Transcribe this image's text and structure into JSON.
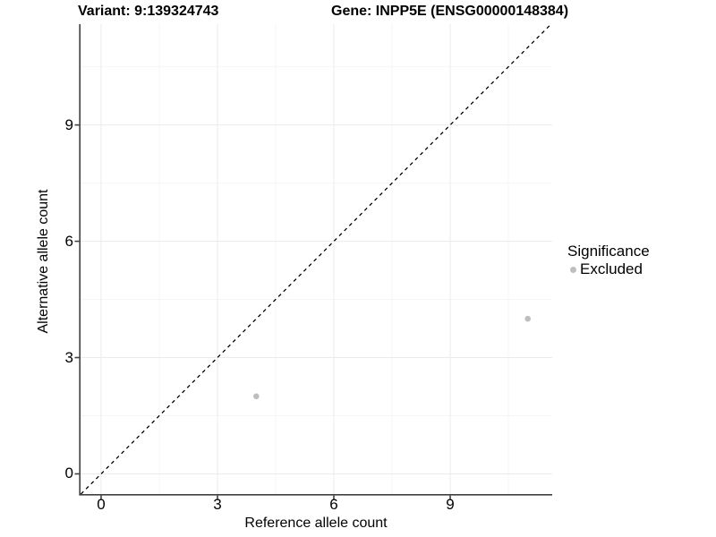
{
  "chart_data": {
    "type": "scatter",
    "titles": {
      "left": "Variant: 9:139324743",
      "right": "Gene: INPP5E (ENSG00000148384)"
    },
    "xlabel": "Reference allele count",
    "ylabel": "Alternative allele count",
    "xlim": [
      -0.53,
      11.63
    ],
    "ylim": [
      -0.52,
      11.6
    ],
    "x_major_ticks": [
      0,
      3,
      6,
      9
    ],
    "y_major_ticks": [
      0,
      3,
      6,
      9
    ],
    "x_minor_ticks": [
      1.5,
      4.5,
      7.5,
      10.5
    ],
    "y_minor_ticks": [
      1.5,
      4.5,
      7.5,
      10.5
    ],
    "grid": true,
    "legend_position": "right",
    "identity_line": {
      "slope": 1,
      "intercept": 0,
      "style": "dashed",
      "color": "#000000"
    },
    "points": [
      {
        "x": 4,
        "y": 2,
        "significance": "Excluded"
      },
      {
        "x": 11,
        "y": 4,
        "significance": "Excluded"
      }
    ],
    "legend": {
      "title": "Significance",
      "items": [
        {
          "label": "Excluded",
          "color": "#bebebe"
        }
      ]
    },
    "colors": {
      "point": "#bebebe",
      "grid_major": "#ebebeb",
      "grid_minor": "#f5f5f5",
      "axis": "#404040",
      "text": "#000000",
      "background": "#ffffff"
    }
  }
}
